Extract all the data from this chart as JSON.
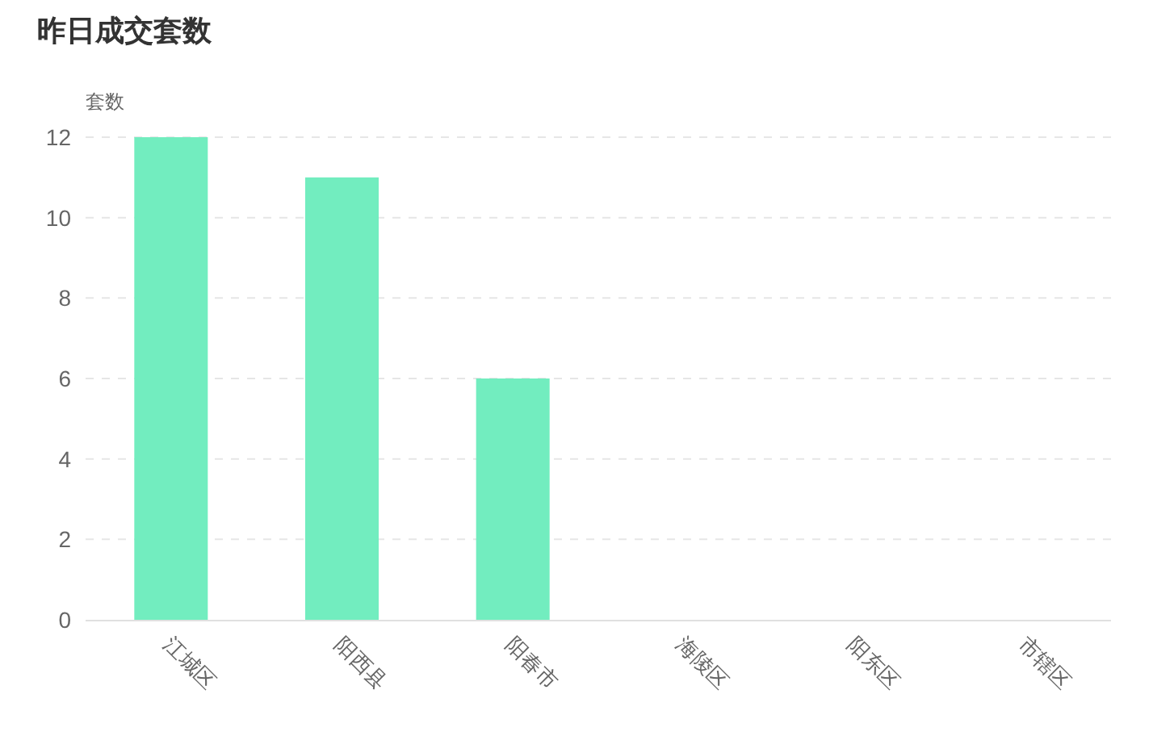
{
  "chart_data": {
    "type": "bar",
    "title": "昨日成交套数",
    "ylabel": "套数",
    "categories": [
      "江城区",
      "阳西县",
      "阳春市",
      "海陵区",
      "阳东区",
      "市辖区"
    ],
    "values": [
      12,
      11,
      6,
      0,
      0,
      0
    ],
    "color": "#72edbf",
    "ylim": [
      0,
      12
    ],
    "yticks": [
      0,
      2,
      4,
      6,
      8,
      10,
      12
    ],
    "grid": "y"
  }
}
